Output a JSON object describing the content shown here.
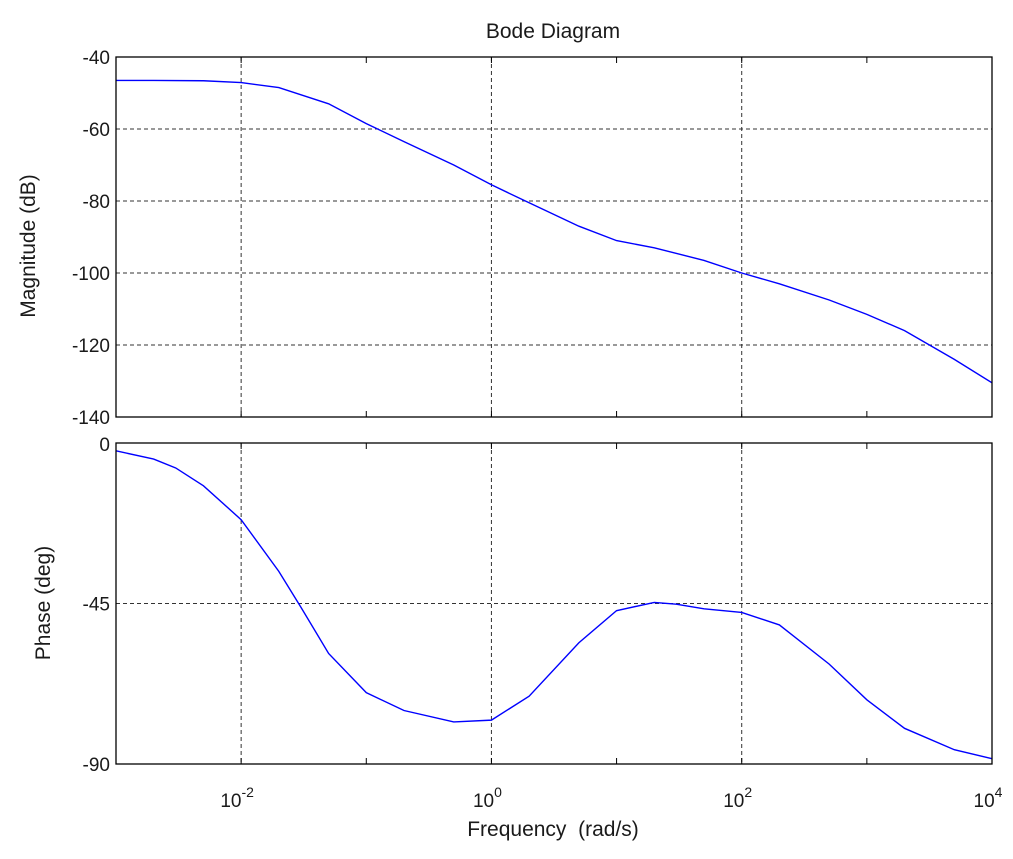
{
  "chart_data": [
    {
      "type": "line",
      "title": "Bode Diagram",
      "ylabel": "Magnitude (dB)",
      "xscale": "log",
      "xlim": [
        0.001,
        10000
      ],
      "ylim": [
        -140,
        -40
      ],
      "yticks": [
        -40,
        -60,
        -80,
        -100,
        -120,
        -140
      ],
      "grid": true,
      "series": [
        {
          "color": "#0000ff",
          "x": [
            0.001,
            0.002,
            0.005,
            0.01,
            0.02,
            0.05,
            0.1,
            0.2,
            0.5,
            1,
            2,
            5,
            10,
            20,
            50,
            100,
            200,
            500,
            1000,
            2000,
            5000,
            10000
          ],
          "y": [
            -46.5,
            -46.5,
            -46.6,
            -47.1,
            -48.5,
            -53,
            -58.5,
            -63.5,
            -70,
            -75.5,
            -80.5,
            -87,
            -91,
            -93,
            -96.5,
            -100,
            -103,
            -107.5,
            -111.5,
            -116,
            -124,
            -130.5
          ]
        }
      ]
    },
    {
      "type": "line",
      "ylabel": "Phase (deg)",
      "xlabel": "Frequency  (rad/s)",
      "xscale": "log",
      "xlim": [
        0.001,
        10000
      ],
      "ylim": [
        -90,
        0
      ],
      "yticks": [
        0,
        -45,
        -90
      ],
      "xticks": [
        {
          "value": 0.01,
          "base": "10",
          "exp": "-2"
        },
        {
          "value": 1,
          "base": "10",
          "exp": "0"
        },
        {
          "value": 100,
          "base": "10",
          "exp": "2"
        },
        {
          "value": 10000,
          "base": "10",
          "exp": "4"
        }
      ],
      "grid": true,
      "series": [
        {
          "color": "#0000ff",
          "x": [
            0.001,
            0.002,
            0.003,
            0.005,
            0.01,
            0.02,
            0.03,
            0.05,
            0.1,
            0.2,
            0.5,
            1,
            2,
            5,
            10,
            20,
            30,
            50,
            100,
            200,
            500,
            1000,
            2000,
            5000,
            10000
          ],
          "y": [
            -2.2,
            -4.5,
            -7,
            -12,
            -21.5,
            -36,
            -46,
            -59,
            -70,
            -75,
            -78.2,
            -77.7,
            -71,
            -56,
            -47,
            -44.7,
            -45.2,
            -46.5,
            -47.5,
            -51,
            -62,
            -72,
            -80,
            -86,
            -88.5
          ]
        }
      ]
    }
  ]
}
